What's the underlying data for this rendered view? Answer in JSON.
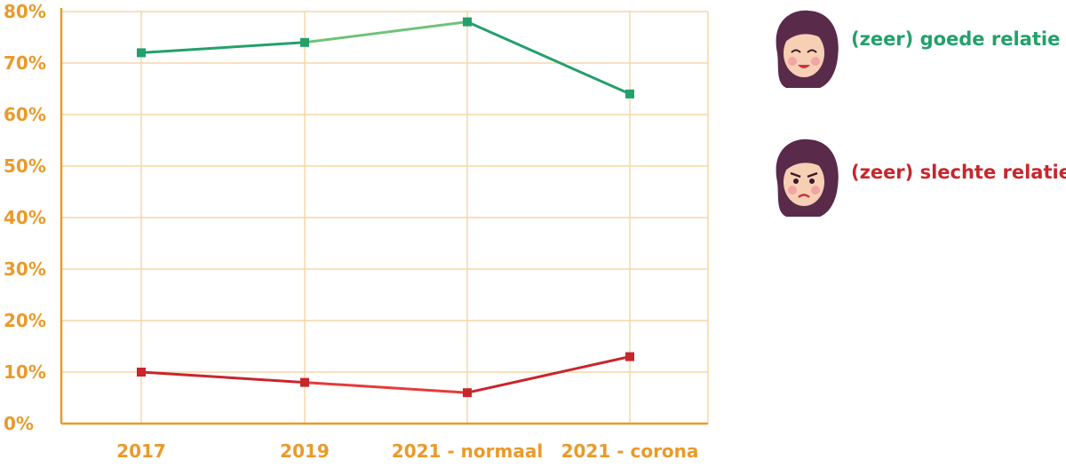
{
  "chart_data": {
    "type": "line",
    "categories": [
      "2017",
      "2019",
      "2021 - normaal",
      "2021 - corona"
    ],
    "ylim": [
      0,
      80
    ],
    "y_ticks": [
      0,
      10,
      20,
      30,
      40,
      50,
      60,
      70,
      80
    ],
    "y_tick_labels": [
      "0%",
      "10%",
      "20%",
      "30%",
      "40%",
      "50%",
      "60%",
      "70%",
      "80%"
    ],
    "grid": true,
    "legend_position": "right",
    "series": [
      {
        "name": "(zeer) goede relatie",
        "values": [
          72,
          74,
          78,
          64
        ],
        "color": "#23a06b",
        "color_light": "#6fc27a",
        "icon": "smiling-woman-avatar-icon"
      },
      {
        "name": "(zeer) slechte relatie",
        "values": [
          10,
          8,
          6,
          13
        ],
        "color": "#c8262d",
        "color_light": "#e53b3b",
        "icon": "angry-woman-avatar-icon"
      }
    ],
    "axis_color": "#ea9a2a",
    "grid_color": "#f6d7a6"
  }
}
